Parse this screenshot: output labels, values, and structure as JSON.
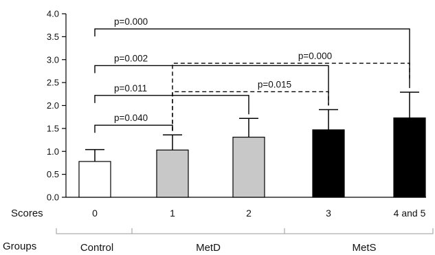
{
  "chart_data": {
    "type": "bar",
    "categories": [
      "0",
      "1",
      "2",
      "3",
      "4 and 5"
    ],
    "values": [
      0.78,
      1.03,
      1.31,
      1.47,
      1.73
    ],
    "errors": [
      0.26,
      0.33,
      0.41,
      0.44,
      0.56
    ],
    "bar_colors": [
      "#ffffff",
      "#c8c8c8",
      "#c8c8c8",
      "#000000",
      "#000000"
    ],
    "ylim": [
      0,
      4.0
    ],
    "yticks": [
      "0.0",
      "0.5",
      "1.0",
      "1.5",
      "2.0",
      "2.5",
      "3.0",
      "3.5",
      "4.0"
    ],
    "ytick_values": [
      0,
      0.5,
      1.0,
      1.5,
      2.0,
      2.5,
      3.0,
      3.5,
      4.0
    ],
    "row_label_scores": "Scores",
    "row_label_groups": "Groups",
    "groups": [
      {
        "label": "Control",
        "from": 0,
        "to": 0
      },
      {
        "label": "MetD",
        "from": 1,
        "to": 2
      },
      {
        "label": "MetS",
        "from": 3,
        "to": 4
      }
    ],
    "comparisons": [
      {
        "from": 0,
        "to": 4,
        "label": "p=0.000",
        "y": 3.67,
        "dashed": false
      },
      {
        "from": 0,
        "to": 3,
        "label": "p=0.002",
        "y": 2.87,
        "dashed": false
      },
      {
        "from": 0,
        "to": 2,
        "label": "p=0.011",
        "y": 2.22,
        "dashed": false
      },
      {
        "from": 0,
        "to": 1,
        "label": "p=0.040",
        "y": 1.57,
        "dashed": false
      },
      {
        "from": 1,
        "to": 4,
        "label": "p=0.000",
        "y": 2.92,
        "dashed": true
      },
      {
        "from": 1,
        "to": 3,
        "label": "p=0.015",
        "y": 2.3,
        "dashed": true
      }
    ]
  }
}
